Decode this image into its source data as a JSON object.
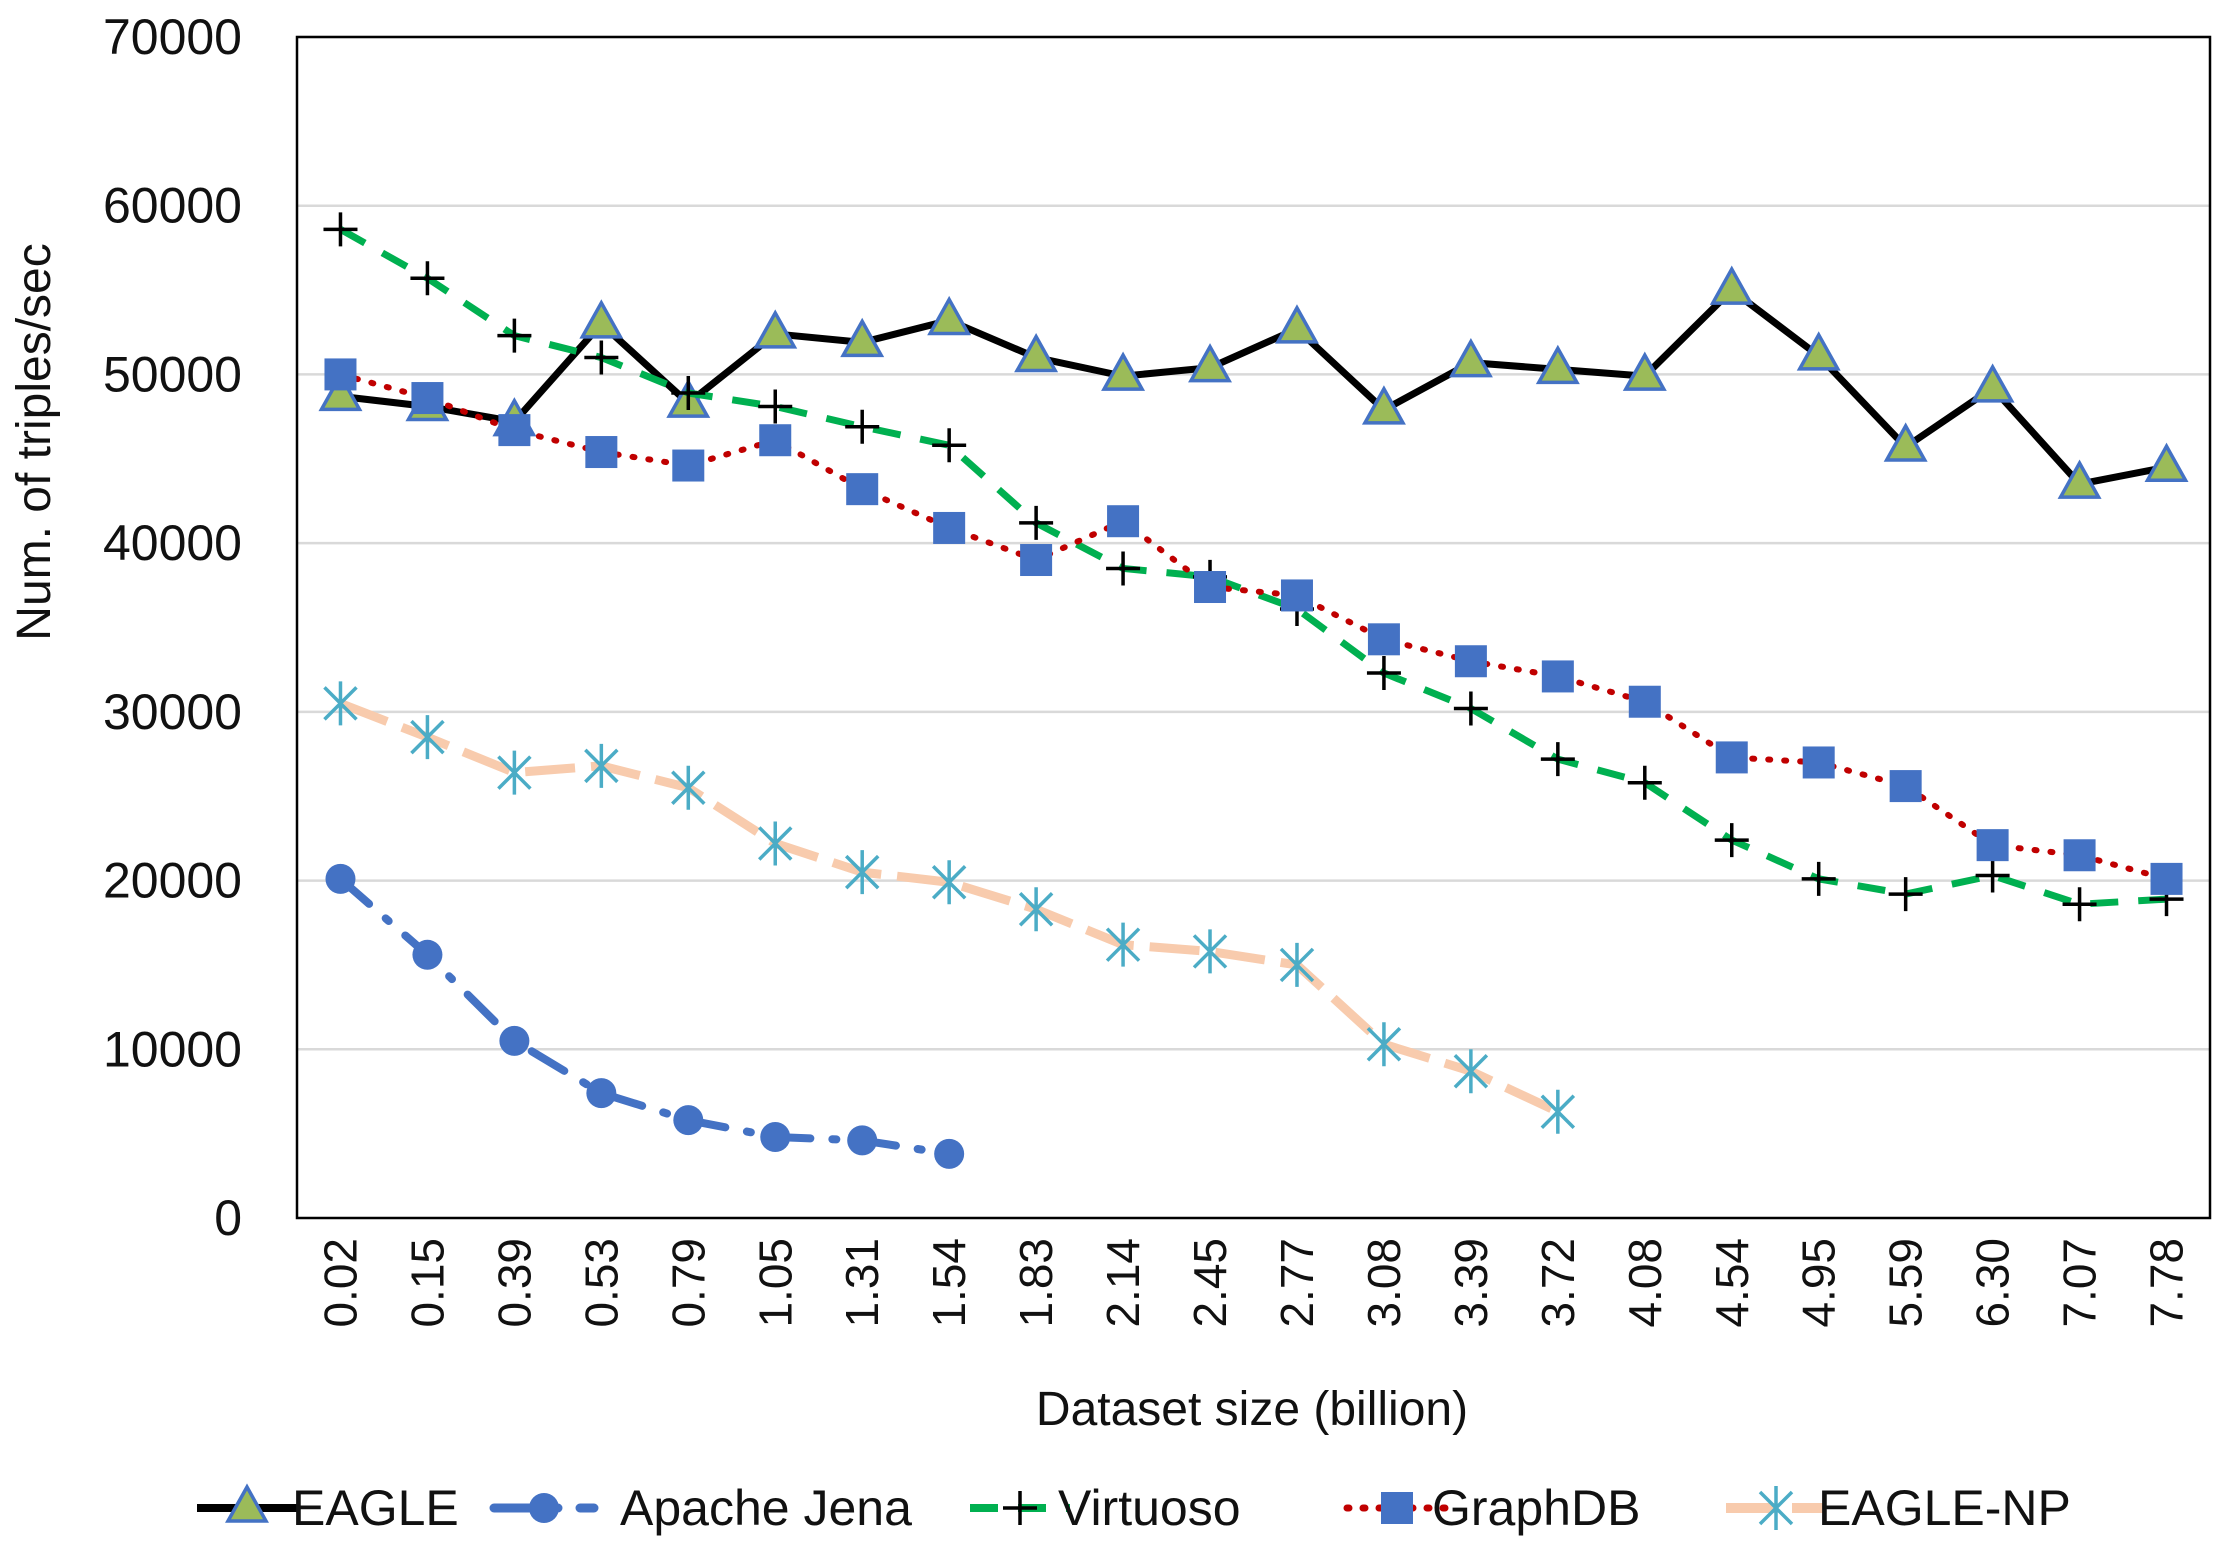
{
  "chart_data": {
    "type": "line",
    "title": "",
    "xlabel": "Dataset size (billion)",
    "ylabel": "Num. of triples/sec",
    "ylim": [
      0,
      70000
    ],
    "y_ticks": [
      "0",
      "10000",
      "20000",
      "30000",
      "40000",
      "50000",
      "60000",
      "70000"
    ],
    "grid": "horizontal",
    "legend_position": "bottom",
    "categories": [
      "0.02",
      "0.15",
      "0.39",
      "0.53",
      "0.79",
      "1.05",
      "1.31",
      "1.54",
      "1.83",
      "2.14",
      "2.45",
      "2.77",
      "3.08",
      "3.39",
      "3.72",
      "4.08",
      "4.54",
      "4.95",
      "5.59",
      "6.30",
      "7.07",
      "7.78"
    ],
    "series": [
      {
        "name": "EAGLE",
        "color": "#000000",
        "marker_color": "#9BBB59",
        "marker_edge": "#4472C4",
        "marker": "triangle",
        "line_style": "solid",
        "values": [
          48700,
          48100,
          47200,
          53000,
          48300,
          52400,
          51900,
          53200,
          51000,
          49900,
          50400,
          52700,
          47900,
          50700,
          50300,
          49900,
          55000,
          51100,
          45700,
          49200,
          43500,
          44500
        ]
      },
      {
        "name": "Apache Jena",
        "color": "#4472C4",
        "marker_color": "#4472C4",
        "marker": "circle",
        "line_style": "dash-dot",
        "values": [
          20100,
          15600,
          10500,
          7400,
          5800,
          4800,
          4600,
          3800,
          null,
          null,
          null,
          null,
          null,
          null,
          null,
          null,
          null,
          null,
          null,
          null,
          null,
          null
        ]
      },
      {
        "name": "Virtuoso",
        "color": "#00B050",
        "marker_color": "#000000",
        "marker": "plus",
        "line_style": "dashed",
        "values": [
          58600,
          55700,
          52300,
          51000,
          48900,
          48100,
          46900,
          45800,
          41200,
          38500,
          38000,
          36100,
          32300,
          30200,
          27200,
          25800,
          22400,
          20100,
          19200,
          20300,
          18600,
          18900
        ]
      },
      {
        "name": "GraphDB",
        "color": "#C00000",
        "marker_color": "#4472C4",
        "marker": "square",
        "line_style": "dotted",
        "values": [
          50000,
          48600,
          46700,
          45400,
          44600,
          46100,
          43200,
          40900,
          39000,
          41300,
          37400,
          36900,
          34300,
          33000,
          32100,
          30600,
          27300,
          27000,
          25600,
          22100,
          21500,
          20100
        ]
      },
      {
        "name": "EAGLE-NP",
        "color": "#F8CBAD",
        "marker_color": "#4BACC6",
        "marker": "star",
        "line_style": "long-dash",
        "values": [
          30500,
          28500,
          26400,
          26800,
          25500,
          22200,
          20500,
          19900,
          18300,
          16200,
          15800,
          15000,
          10300,
          8700,
          6300,
          null,
          null,
          null,
          null,
          null,
          null,
          null
        ]
      }
    ]
  }
}
